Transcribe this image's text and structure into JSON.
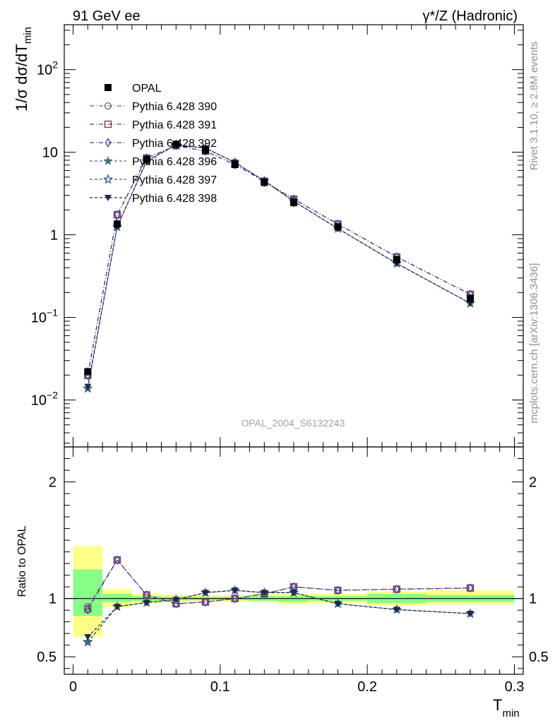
{
  "header": {
    "left": "91 GeV ee",
    "right": "γ*/Z (Hadronic)"
  },
  "side_labels": {
    "rivet": "Rivet 3.1.10, ≥ 2.8M events",
    "mcplots": "mcplots.cern.ch [arXiv:1306.3436]"
  },
  "watermark": "OPAL_2004_S6132243",
  "chart_data": [
    {
      "type": "line",
      "name": "main",
      "ylabel": "1/σ dσ/dT",
      "ylabel_sub": "min",
      "yscale": "log",
      "ylim": [
        0.0027,
        350
      ],
      "xlim": [
        -0.006,
        0.306
      ],
      "ytick_labels": [
        {
          "value": 0.01,
          "base": "10",
          "exp": "−2"
        },
        {
          "value": 0.1,
          "base": "10",
          "exp": "−1"
        },
        {
          "value": 1,
          "base": "1",
          "exp": ""
        },
        {
          "value": 10,
          "base": "10",
          "exp": ""
        },
        {
          "value": 100,
          "base": "10",
          "exp": "2"
        }
      ],
      "x": [
        0.01,
        0.03,
        0.05,
        0.07,
        0.09,
        0.11,
        0.13,
        0.15,
        0.18,
        0.22,
        0.27
      ],
      "data": {
        "name": "OPAL",
        "values": [
          0.022,
          1.35,
          8.2,
          12.5,
          10.6,
          7.1,
          4.3,
          2.45,
          1.25,
          0.5,
          0.17
        ]
      },
      "series": [
        {
          "name": "Pythia 6.428 390",
          "color": "#7a5c8c",
          "dash": "6,3,1,3",
          "marker": "circle-open",
          "values": [
            0.02,
            1.75,
            8.5,
            12.0,
            10.3,
            7.1,
            4.45,
            2.7,
            1.35,
            0.54,
            0.19
          ]
        },
        {
          "name": "Pythia 6.428 391",
          "color": "#6e3a52",
          "dash": "6,3,1,3",
          "marker": "square-open",
          "values": [
            0.0198,
            1.75,
            8.5,
            12.0,
            10.3,
            7.1,
            4.45,
            2.7,
            1.35,
            0.54,
            0.19
          ]
        },
        {
          "name": "Pythia 6.428 392",
          "color": "#4a3a8c",
          "dash": "6,3,1,3",
          "marker": "diamond-open",
          "values": [
            0.0199,
            1.75,
            8.5,
            12.0,
            10.3,
            7.1,
            4.45,
            2.7,
            1.35,
            0.54,
            0.19
          ]
        },
        {
          "name": "Pythia 6.428 396",
          "color": "#4a6e7a",
          "dash": "4,3",
          "marker": "star-filled",
          "values": [
            0.0138,
            1.25,
            7.8,
            12.2,
            11.2,
            7.55,
            4.5,
            2.55,
            1.19,
            0.45,
            0.148
          ]
        },
        {
          "name": "Pythia 6.428 397",
          "color": "#3a5a7a",
          "dash": "4,3",
          "marker": "star-open",
          "values": [
            0.0138,
            1.25,
            7.8,
            12.2,
            11.2,
            7.55,
            4.5,
            2.55,
            1.19,
            0.45,
            0.148
          ]
        },
        {
          "name": "Pythia 6.428 398",
          "color": "#1a2a4a",
          "dash": "4,3",
          "marker": "triangle-down-filled",
          "values": [
            0.0145,
            1.26,
            7.85,
            12.3,
            11.2,
            7.55,
            4.5,
            2.55,
            1.19,
            0.45,
            0.148
          ]
        }
      ]
    },
    {
      "type": "line",
      "name": "ratio",
      "ylabel": "Ratio to OPAL",
      "xlabel": "T",
      "xlabel_sub": "min",
      "ylim": [
        0.35,
        2.3
      ],
      "xlim": [
        -0.006,
        0.306
      ],
      "ytick_labels": [
        {
          "value": 0.5,
          "label": "0.5"
        },
        {
          "value": 1,
          "label": "1"
        },
        {
          "value": 2,
          "label": "2"
        }
      ],
      "xtick_labels": [
        {
          "value": 0,
          "label": "0"
        },
        {
          "value": 0.1,
          "label": "0.1"
        },
        {
          "value": 0.2,
          "label": "0.2"
        },
        {
          "value": 0.3,
          "label": "0.3"
        }
      ],
      "bands": [
        {
          "x0": 0.0,
          "x1": 0.02,
          "yellow": [
            0.67,
            1.45
          ],
          "green": [
            0.85,
            1.25
          ]
        },
        {
          "x0": 0.02,
          "x1": 0.04,
          "yellow": [
            0.93,
            1.08
          ],
          "green": [
            0.97,
            1.04
          ]
        },
        {
          "x0": 0.04,
          "x1": 0.06,
          "yellow": [
            0.96,
            1.04
          ],
          "green": [
            0.98,
            1.02
          ]
        },
        {
          "x0": 0.06,
          "x1": 0.08,
          "yellow": [
            0.97,
            1.03
          ],
          "green": [
            0.985,
            1.015
          ]
        },
        {
          "x0": 0.08,
          "x1": 0.1,
          "yellow": [
            0.97,
            1.03
          ],
          "green": [
            0.985,
            1.015
          ]
        },
        {
          "x0": 0.1,
          "x1": 0.12,
          "yellow": [
            0.97,
            1.03
          ],
          "green": [
            0.985,
            1.015
          ]
        },
        {
          "x0": 0.12,
          "x1": 0.14,
          "yellow": [
            0.97,
            1.04
          ],
          "green": [
            0.98,
            1.02
          ]
        },
        {
          "x0": 0.14,
          "x1": 0.16,
          "yellow": [
            0.95,
            1.04
          ],
          "green": [
            0.97,
            1.02
          ]
        },
        {
          "x0": 0.16,
          "x1": 0.2,
          "yellow": [
            0.96,
            1.04
          ],
          "green": [
            0.98,
            1.02
          ]
        },
        {
          "x0": 0.2,
          "x1": 0.24,
          "yellow": [
            0.94,
            1.06
          ],
          "green": [
            0.96,
            1.04
          ]
        },
        {
          "x0": 0.24,
          "x1": 0.3,
          "yellow": [
            0.95,
            1.07
          ],
          "green": [
            0.97,
            1.03
          ]
        }
      ],
      "reference": 1.0,
      "x": [
        0.01,
        0.03,
        0.05,
        0.07,
        0.09,
        0.11,
        0.13,
        0.15,
        0.18,
        0.22,
        0.27
      ],
      "series": [
        {
          "name": "Pythia 6.428 390",
          "values": [
            0.93,
            1.33,
            1.03,
            0.955,
            0.97,
            1.0,
            1.04,
            1.1,
            1.07,
            1.08,
            1.09
          ]
        },
        {
          "name": "Pythia 6.428 391",
          "values": [
            0.91,
            1.33,
            1.03,
            0.955,
            0.97,
            1.0,
            1.04,
            1.1,
            1.07,
            1.08,
            1.09
          ]
        },
        {
          "name": "Pythia 6.428 392",
          "values": [
            0.905,
            1.33,
            1.03,
            0.955,
            0.97,
            1.0,
            1.04,
            1.1,
            1.07,
            1.08,
            1.09
          ]
        },
        {
          "name": "Pythia 6.428 396",
          "values": [
            0.63,
            0.93,
            0.965,
            0.99,
            1.05,
            1.07,
            1.05,
            1.05,
            0.955,
            0.905,
            0.87
          ]
        },
        {
          "name": "Pythia 6.428 397",
          "values": [
            0.625,
            0.93,
            0.965,
            0.99,
            1.05,
            1.07,
            1.05,
            1.05,
            0.955,
            0.905,
            0.87
          ]
        },
        {
          "name": "Pythia 6.428 398",
          "values": [
            0.67,
            0.93,
            0.965,
            0.99,
            1.05,
            1.07,
            1.05,
            1.05,
            0.955,
            0.905,
            0.87
          ]
        }
      ]
    }
  ]
}
